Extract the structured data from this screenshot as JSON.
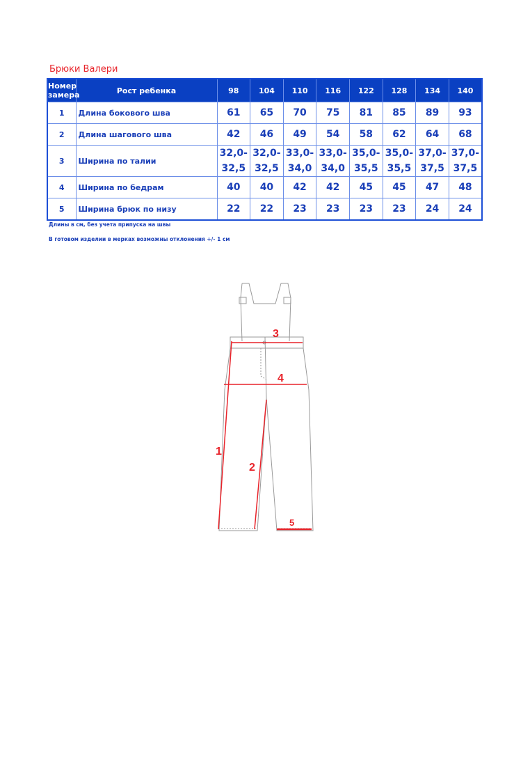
{
  "title": "Брюки Валери",
  "table": {
    "header": {
      "num": "Номер замера",
      "desc": "Рост ребенка",
      "sizes": [
        "98",
        "104",
        "110",
        "116",
        "122",
        "128",
        "134",
        "140"
      ]
    },
    "rows": [
      {
        "num": "1",
        "desc": "Длина бокового шва",
        "values": [
          "61",
          "65",
          "70",
          "75",
          "81",
          "85",
          "89",
          "93"
        ]
      },
      {
        "num": "2",
        "desc": "Длина шагового шва",
        "values": [
          "42",
          "46",
          "49",
          "54",
          "58",
          "62",
          "64",
          "68"
        ]
      },
      {
        "num": "3",
        "desc": "Ширина по талии",
        "values": [
          "32,0- 32,5",
          "32,0- 32,5",
          "33,0- 34,0",
          "33,0- 34,0",
          "35,0- 35,5",
          "35,0- 35,5",
          "37,0- 37,5",
          "37,0- 37,5"
        ]
      },
      {
        "num": "4",
        "desc": "Ширина по бедрам",
        "values": [
          "40",
          "40",
          "42",
          "42",
          "45",
          "45",
          "47",
          "48"
        ]
      },
      {
        "num": "5",
        "desc": "Ширина брюк по низу",
        "values": [
          "22",
          "22",
          "23",
          "23",
          "23",
          "23",
          "24",
          "24"
        ]
      }
    ]
  },
  "notes": [
    "Длины в см, без учета припуска на швы",
    "В готовом изделии в мерках возможны отклонения +/- 1 см"
  ],
  "diagram": {
    "labels": [
      "1",
      "2",
      "3",
      "4",
      "5"
    ],
    "accent_color": "#e8232a",
    "line_color": "#9a9a9a"
  }
}
